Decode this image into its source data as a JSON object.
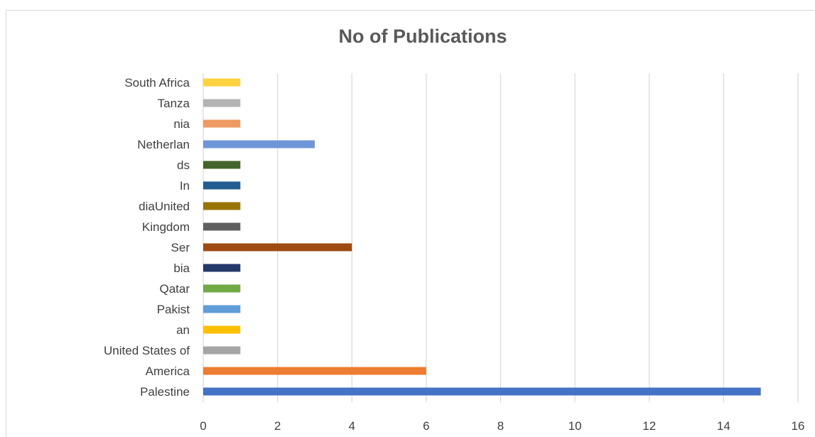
{
  "chart_data": {
    "type": "bar",
    "orientation": "horizontal",
    "title": "No of Publications",
    "xlabel": "",
    "ylabel": "",
    "xlim": [
      0,
      16
    ],
    "x_ticks": [
      "0",
      "2",
      "4",
      "6",
      "8",
      "10",
      "12",
      "14",
      "16"
    ],
    "grid": "vertical",
    "legend": "none",
    "category_labels": [
      "South Africa",
      "Tanza",
      "nia",
      "Netherlan",
      "ds",
      "In",
      "diaUnited",
      "Kingdom",
      "Ser",
      "bia",
      "Qatar",
      "Pakist",
      "an",
      "United States of",
      "America",
      "Palestine"
    ],
    "bars": [
      {
        "value": 1,
        "color": "#FFD23F"
      },
      {
        "value": 1,
        "color": "#B4B4B4"
      },
      {
        "value": 1,
        "color": "#EE9A62"
      },
      {
        "value": 3,
        "color": "#6F95D8"
      },
      {
        "value": 1,
        "color": "#44642B"
      },
      {
        "value": 1,
        "color": "#235C8F"
      },
      {
        "value": 1,
        "color": "#9A7400"
      },
      {
        "value": 1,
        "color": "#5E5E5E"
      },
      {
        "value": 4,
        "color": "#9E4A10"
      },
      {
        "value": 1,
        "color": "#24386A"
      },
      {
        "value": 1,
        "color": "#6FAA45"
      },
      {
        "value": 1,
        "color": "#5F9CD8"
      },
      {
        "value": 1,
        "color": "#FFC000"
      },
      {
        "value": 1,
        "color": "#A5A5A5"
      },
      {
        "value": 6,
        "color": "#ED7D31"
      },
      {
        "value": 15,
        "color": "#4472C4"
      }
    ],
    "colors": {
      "grid": "#d9d9d9",
      "text": "#404040",
      "title": "#595959"
    }
  }
}
